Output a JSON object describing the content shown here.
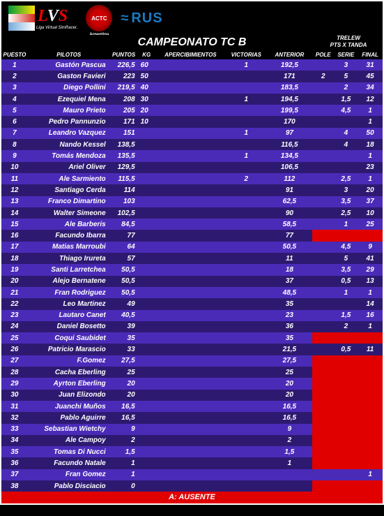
{
  "logos": {
    "lvs_sub": "Liga Virtual SimRacer.",
    "actc": "ACTC",
    "rus": "RUS"
  },
  "title": "CAMPEONATO TC B",
  "event": {
    "line1": "TRELEW",
    "line2": "PTS X TANDA"
  },
  "columns": {
    "puesto": "PUESTO",
    "pilotos": "PILOTOS",
    "puntos": "PUNTOS",
    "kg": "KG",
    "apercibimientos": "APERCIBIMIENTOS",
    "victorias": "VICTORIAS",
    "anterior": "ANTERIOR",
    "pole": "POLE",
    "serie": "SERIE",
    "final": "FINAL"
  },
  "rows": [
    {
      "pos": "1",
      "pilot": "Gastón Pascua",
      "pts": "226,5",
      "kg": "60",
      "aperc": "",
      "vict": "1",
      "ant": "192,5",
      "pole": "",
      "serie": "3",
      "final": "31"
    },
    {
      "pos": "2",
      "pilot": "Gaston Favieri",
      "pts": "223",
      "kg": "50",
      "aperc": "",
      "vict": "",
      "ant": "171",
      "pole": "2",
      "serie": "5",
      "final": "45"
    },
    {
      "pos": "3",
      "pilot": "Diego Pollini",
      "pts": "219,5",
      "kg": "40",
      "aperc": "",
      "vict": "",
      "ant": "183,5",
      "pole": "",
      "serie": "2",
      "final": "34"
    },
    {
      "pos": "4",
      "pilot": "Ezequiel Mena",
      "pts": "208",
      "kg": "30",
      "aperc": "",
      "vict": "1",
      "ant": "194,5",
      "pole": "",
      "serie": "1,5",
      "final": "12"
    },
    {
      "pos": "5",
      "pilot": "Mauro Prieto",
      "pts": "205",
      "kg": "20",
      "aperc": "",
      "vict": "",
      "ant": "199,5",
      "pole": "",
      "serie": "4,5",
      "final": "1"
    },
    {
      "pos": "6",
      "pilot": "Pedro Pannunzio",
      "pts": "171",
      "kg": "10",
      "aperc": "",
      "vict": "",
      "ant": "170",
      "pole": "",
      "serie": "",
      "final": "1"
    },
    {
      "pos": "7",
      "pilot": "Leandro Vazquez",
      "pts": "151",
      "kg": "",
      "aperc": "",
      "vict": "1",
      "ant": "97",
      "pole": "",
      "serie": "4",
      "final": "50"
    },
    {
      "pos": "8",
      "pilot": "Nando Kessel",
      "pts": "138,5",
      "kg": "",
      "aperc": "",
      "vict": "",
      "ant": "116,5",
      "pole": "",
      "serie": "4",
      "final": "18"
    },
    {
      "pos": "9",
      "pilot": "Tomás Mendoza",
      "pts": "135,5",
      "kg": "",
      "aperc": "",
      "vict": "1",
      "ant": "134,5",
      "pole": "",
      "serie": "",
      "final": "1"
    },
    {
      "pos": "10",
      "pilot": "Ariel Oliver",
      "pts": "129,5",
      "kg": "",
      "aperc": "",
      "vict": "",
      "ant": "106,5",
      "pole": "",
      "serie": "",
      "final": "23"
    },
    {
      "pos": "11",
      "pilot": "Ale Sarmiento",
      "pts": "115,5",
      "kg": "",
      "aperc": "",
      "vict": "2",
      "ant": "112",
      "pole": "",
      "serie": "2,5",
      "final": "1"
    },
    {
      "pos": "12",
      "pilot": "Santiago Cerda",
      "pts": "114",
      "kg": "",
      "aperc": "",
      "vict": "",
      "ant": "91",
      "pole": "",
      "serie": "3",
      "final": "20"
    },
    {
      "pos": "13",
      "pilot": "Franco Dimartino",
      "pts": "103",
      "kg": "",
      "aperc": "",
      "vict": "",
      "ant": "62,5",
      "pole": "",
      "serie": "3,5",
      "final": "37"
    },
    {
      "pos": "14",
      "pilot": "Walter Simeone",
      "pts": "102,5",
      "kg": "",
      "aperc": "",
      "vict": "",
      "ant": "90",
      "pole": "",
      "serie": "2,5",
      "final": "10"
    },
    {
      "pos": "15",
      "pilot": "Ale Barberis",
      "pts": "84,5",
      "kg": "",
      "aperc": "",
      "vict": "",
      "ant": "58,5",
      "pole": "",
      "serie": "1",
      "final": "25"
    },
    {
      "pos": "16",
      "pilot": "Facundo Ibarra",
      "pts": "77",
      "kg": "",
      "aperc": "",
      "vict": "",
      "ant": "77",
      "pole": "",
      "pole_red": true,
      "serie": "",
      "serie_red": true,
      "final": "",
      "final_red": true
    },
    {
      "pos": "17",
      "pilot": "Matias Marroubi",
      "pts": "64",
      "kg": "",
      "aperc": "",
      "vict": "",
      "ant": "50,5",
      "pole": "",
      "serie": "4,5",
      "final": "9"
    },
    {
      "pos": "18",
      "pilot": "Thiago Irureta",
      "pts": "57",
      "kg": "",
      "aperc": "",
      "vict": "",
      "ant": "11",
      "pole": "",
      "serie": "5",
      "final": "41"
    },
    {
      "pos": "19",
      "pilot": "Santi Larretchea",
      "pts": "50,5",
      "kg": "",
      "aperc": "",
      "vict": "",
      "ant": "18",
      "pole": "",
      "serie": "3,5",
      "final": "29"
    },
    {
      "pos": "20",
      "pilot": "Alejo Bernatene",
      "pts": "50,5",
      "kg": "",
      "aperc": "",
      "vict": "",
      "ant": "37",
      "pole": "",
      "serie": "0,5",
      "final": "13"
    },
    {
      "pos": "21",
      "pilot": "Fran Rodriguez",
      "pts": "50,5",
      "kg": "",
      "aperc": "",
      "vict": "",
      "ant": "48,5",
      "pole": "",
      "serie": "1",
      "final": "1"
    },
    {
      "pos": "22",
      "pilot": "Leo Martinez",
      "pts": "49",
      "kg": "",
      "aperc": "",
      "vict": "",
      "ant": "35",
      "pole": "",
      "serie": "",
      "final": "14"
    },
    {
      "pos": "23",
      "pilot": "Lautaro Canet",
      "pts": "40,5",
      "kg": "",
      "aperc": "",
      "vict": "",
      "ant": "23",
      "pole": "",
      "serie": "1,5",
      "final": "16"
    },
    {
      "pos": "24",
      "pilot": "Daniel Bosetto",
      "pts": "39",
      "kg": "",
      "aperc": "",
      "vict": "",
      "ant": "36",
      "pole": "",
      "serie": "2",
      "final": "1"
    },
    {
      "pos": "25",
      "pilot": "Coqui Saubidet",
      "pts": "35",
      "kg": "",
      "aperc": "",
      "vict": "",
      "ant": "35",
      "pole": "",
      "pole_red": true,
      "serie": "",
      "serie_red": true,
      "final": "",
      "final_red": true
    },
    {
      "pos": "26",
      "pilot": "Patricio Marascio",
      "pts": "33",
      "kg": "",
      "aperc": "",
      "vict": "",
      "ant": "21,5",
      "pole": "",
      "serie": "0,5",
      "final": "11"
    },
    {
      "pos": "27",
      "pilot": "F.Gomez",
      "pts": "27,5",
      "kg": "",
      "aperc": "",
      "vict": "",
      "ant": "27,5",
      "pole": "",
      "pole_red": true,
      "serie": "",
      "serie_red": true,
      "final": "",
      "final_red": true
    },
    {
      "pos": "28",
      "pilot": "Cacha Eberling",
      "pts": "25",
      "kg": "",
      "aperc": "",
      "vict": "",
      "ant": "25",
      "pole": "",
      "pole_red": true,
      "serie": "",
      "serie_red": true,
      "final": "",
      "final_red": true
    },
    {
      "pos": "29",
      "pilot": "Ayrton Eberling",
      "pts": "20",
      "kg": "",
      "aperc": "",
      "vict": "",
      "ant": "20",
      "pole": "",
      "pole_red": true,
      "serie": "",
      "serie_red": true,
      "final": "",
      "final_red": true
    },
    {
      "pos": "30",
      "pilot": "Juan Elizondo",
      "pts": "20",
      "kg": "",
      "aperc": "",
      "vict": "",
      "ant": "20",
      "pole": "",
      "pole_red": true,
      "serie": "",
      "serie_red": true,
      "final": "",
      "final_red": true
    },
    {
      "pos": "31",
      "pilot": "Juanchi Muños",
      "pts": "16,5",
      "kg": "",
      "aperc": "",
      "vict": "",
      "ant": "16,5",
      "pole": "",
      "pole_red": true,
      "serie": "",
      "serie_red": true,
      "final": "",
      "final_red": true
    },
    {
      "pos": "32",
      "pilot": "Pablo Aguirre",
      "pts": "16,5",
      "kg": "",
      "aperc": "",
      "vict": "",
      "ant": "16,5",
      "pole": "",
      "pole_red": true,
      "serie": "",
      "serie_red": true,
      "final": "",
      "final_red": true
    },
    {
      "pos": "33",
      "pilot": "Sebastian Wietchy",
      "pts": "9",
      "kg": "",
      "aperc": "",
      "vict": "",
      "ant": "9",
      "pole": "",
      "pole_red": true,
      "serie": "",
      "serie_red": true,
      "final": "",
      "final_red": true
    },
    {
      "pos": "34",
      "pilot": "Ale Campoy",
      "pts": "2",
      "kg": "",
      "aperc": "",
      "vict": "",
      "ant": "2",
      "pole": "",
      "pole_red": true,
      "serie": "",
      "serie_red": true,
      "final": "",
      "final_red": true
    },
    {
      "pos": "35",
      "pilot": "Tomas Di Nucci",
      "pts": "1,5",
      "kg": "",
      "aperc": "",
      "vict": "",
      "ant": "1,5",
      "pole": "",
      "pole_red": true,
      "serie": "",
      "serie_red": true,
      "final": "",
      "final_red": true
    },
    {
      "pos": "36",
      "pilot": "Facundo Natale",
      "pts": "1",
      "kg": "",
      "aperc": "",
      "vict": "",
      "ant": "1",
      "pole": "",
      "pole_red": true,
      "serie": "",
      "serie_red": true,
      "final": "",
      "final_red": true
    },
    {
      "pos": "37",
      "pilot": "Fran Gomez",
      "pts": "1",
      "kg": "",
      "aperc": "",
      "vict": "",
      "ant": "",
      "pole": "",
      "serie": "",
      "final": "1"
    },
    {
      "pos": "38",
      "pilot": "Pablo Disciacio",
      "pts": "0",
      "kg": "",
      "aperc": "",
      "vict": "",
      "ant": "",
      "pole": "",
      "pole_red": true,
      "serie": "",
      "serie_red": true,
      "final": "",
      "final_red": true
    }
  ],
  "footer": "A: AUSENTE",
  "colors": {
    "row_odd": "#4a2bb8",
    "row_even": "#2d1a70",
    "red": "#e00000",
    "text": "#ffffff",
    "bg": "#000000"
  }
}
